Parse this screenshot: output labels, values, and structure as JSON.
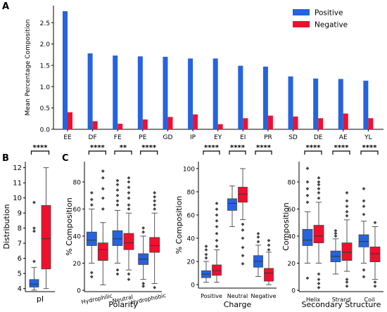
{
  "figure": {
    "panel_labels": [
      "A",
      "B",
      "C"
    ]
  },
  "colors": {
    "positive": "#2563e0",
    "negative": "#f0102e"
  },
  "chart_data": [
    {
      "id": "A",
      "type": "bar",
      "ylabel": "Mean Percentage Composition",
      "ylim": [
        0,
        2.9
      ],
      "yticks": [
        0.0,
        0.5,
        1.0,
        1.5,
        2.0,
        2.5
      ],
      "legend": "top-right",
      "categories": [
        "EE",
        "DF",
        "FE",
        "PE",
        "GD",
        "IP",
        "EY",
        "EI",
        "PR",
        "SD",
        "DE",
        "AE",
        "YL"
      ],
      "series": [
        {
          "name": "Positive",
          "values": [
            2.77,
            1.78,
            1.73,
            1.71,
            1.7,
            1.66,
            1.66,
            1.49,
            1.47,
            1.24,
            1.19,
            1.18,
            1.14
          ]
        },
        {
          "name": "Negative",
          "values": [
            0.4,
            0.19,
            0.13,
            0.23,
            0.29,
            0.35,
            0.12,
            0.26,
            0.32,
            0.3,
            0.26,
            0.37,
            0.26
          ]
        }
      ]
    },
    {
      "id": "B",
      "type": "box",
      "ylabel": "Distribution",
      "ylim": [
        3.8,
        12.4
      ],
      "yticks": [
        4,
        5,
        6,
        7,
        8,
        9,
        10,
        11,
        12
      ],
      "xlabel": "",
      "categories": [
        "pI"
      ],
      "significance": [
        "****"
      ],
      "series": [
        {
          "name": "Positive",
          "boxes": [
            {
              "min": 3.9,
              "q1": 4.1,
              "median": 4.3,
              "q3": 4.6,
              "max": 5.4,
              "fliers": [
                5.8,
                7.8,
                8.0,
                9.7
              ]
            }
          ]
        },
        {
          "name": "Negative",
          "boxes": [
            {
              "min": 4.0,
              "q1": 5.3,
              "median": 7.3,
              "q3": 9.5,
              "max": 12.0,
              "fliers": []
            }
          ]
        }
      ]
    },
    {
      "id": "C1",
      "type": "box",
      "ylabel": "% Composition",
      "xlabel": "Polarity",
      "ylim": [
        -1,
        95
      ],
      "yticks": [
        0,
        20,
        40,
        60,
        80
      ],
      "categories": [
        "Hydrophilic",
        "Neutral",
        "Hydrophobic"
      ],
      "significance": [
        "****",
        "**",
        "****"
      ],
      "series": [
        {
          "name": "Positive",
          "boxes": [
            {
              "min": 20,
              "q1": 33,
              "median": 37,
              "q3": 43,
              "max": 60,
              "fliers": [
                10,
                13,
                63,
                67,
                72
              ]
            },
            {
              "min": 20,
              "q1": 33,
              "median": 38,
              "q3": 44,
              "max": 59,
              "fliers": [
                12,
                15,
                63,
                66,
                70,
                74,
                78,
                81
              ]
            },
            {
              "min": 8,
              "q1": 19,
              "median": 23,
              "q3": 27,
              "max": 40,
              "fliers": [
                3,
                5,
                43,
                46
              ]
            }
          ]
        },
        {
          "name": "Negative",
          "boxes": [
            {
              "min": 4,
              "q1": 22,
              "median": 30,
              "q3": 35,
              "max": 50,
              "fliers": [
                60,
                68,
                75,
                83,
                88
              ]
            },
            {
              "min": 15,
              "q1": 30,
              "median": 35,
              "q3": 42,
              "max": 57,
              "fliers": [
                8,
                12,
                60,
                63,
                68,
                72,
                76,
                80,
                83
              ]
            },
            {
              "min": 5,
              "q1": 28,
              "median": 33,
              "q3": 39,
              "max": 57,
              "fliers": [
                2,
                60,
                63,
                66,
                69,
                72
              ]
            }
          ]
        }
      ]
    },
    {
      "id": "C2",
      "type": "box",
      "ylabel": "% Composition",
      "xlabel": "Charge",
      "ylim": [
        -3,
        106
      ],
      "yticks": [
        0,
        20,
        40,
        60,
        80,
        100
      ],
      "categories": [
        "Positive",
        "Neutral",
        "Negative"
      ],
      "significance": [
        "****",
        "****",
        "****"
      ],
      "series": [
        {
          "name": "Positive",
          "boxes": [
            {
              "min": 2,
              "q1": 6,
              "median": 9,
              "q3": 12,
              "max": 20,
              "fliers": [
                23,
                26,
                30,
                33
              ]
            },
            {
              "min": 50,
              "q1": 64,
              "median": 70,
              "q3": 74,
              "max": 85,
              "fliers": []
            },
            {
              "min": 7,
              "q1": 15,
              "median": 20,
              "q3": 25,
              "max": 34,
              "fliers": [
                37,
                41,
                44
              ]
            }
          ]
        },
        {
          "name": "Negative",
          "boxes": [
            {
              "min": 2,
              "q1": 8,
              "median": 12,
              "q3": 17,
              "max": 30,
              "fliers": [
                33,
                38,
                44,
                50,
                55,
                60,
                65,
                70
              ]
            },
            {
              "min": 56,
              "q1": 71,
              "median": 78,
              "q3": 84,
              "max": 100,
              "fliers": [
                18,
                25,
                32,
                40,
                47,
                52
              ]
            },
            {
              "min": 0,
              "q1": 3,
              "median": 10,
              "q3": 14,
              "max": 28,
              "fliers": [
                30,
                34,
                38
              ]
            }
          ]
        }
      ]
    },
    {
      "id": "C3",
      "type": "box",
      "ylabel": "Composition",
      "xlabel": "Secondary Structure",
      "ylim": [
        -1,
        95
      ],
      "yticks": [
        0,
        20,
        40,
        60,
        80
      ],
      "categories": [
        "Helix",
        "Strand",
        "Coil"
      ],
      "significance": [
        "****",
        "****",
        "****"
      ],
      "series": [
        {
          "name": "Positive",
          "boxes": [
            {
              "min": 20,
              "q1": 33,
              "median": 37,
              "q3": 45,
              "max": 58,
              "fliers": [
                9,
                65,
                70,
                75,
                80,
                90
              ]
            },
            {
              "min": 12,
              "q1": 21,
              "median": 25,
              "q3": 29,
              "max": 38,
              "fliers": [
                40,
                42,
                44
              ]
            },
            {
              "min": 20,
              "q1": 32,
              "median": 36,
              "q3": 41,
              "max": 51,
              "fliers": [
                10,
                15,
                56,
                62,
                66,
                75
              ]
            }
          ]
        },
        {
          "name": "Negative",
          "boxes": [
            {
              "min": 20,
              "q1": 35,
              "median": 40,
              "q3": 48,
              "max": 65,
              "fliers": [
                2,
                5,
                8,
                12,
                68,
                72,
                75,
                78,
                80,
                83
              ]
            },
            {
              "min": 14,
              "q1": 22,
              "median": 28,
              "q3": 35,
              "max": 52,
              "fliers": [
                3,
                6,
                8,
                55,
                58,
                62,
                66,
                72
              ]
            },
            {
              "min": 8,
              "q1": 21,
              "median": 27,
              "q3": 32,
              "max": 47,
              "fliers": [
                3,
                6,
                50
              ]
            }
          ]
        }
      ]
    }
  ]
}
